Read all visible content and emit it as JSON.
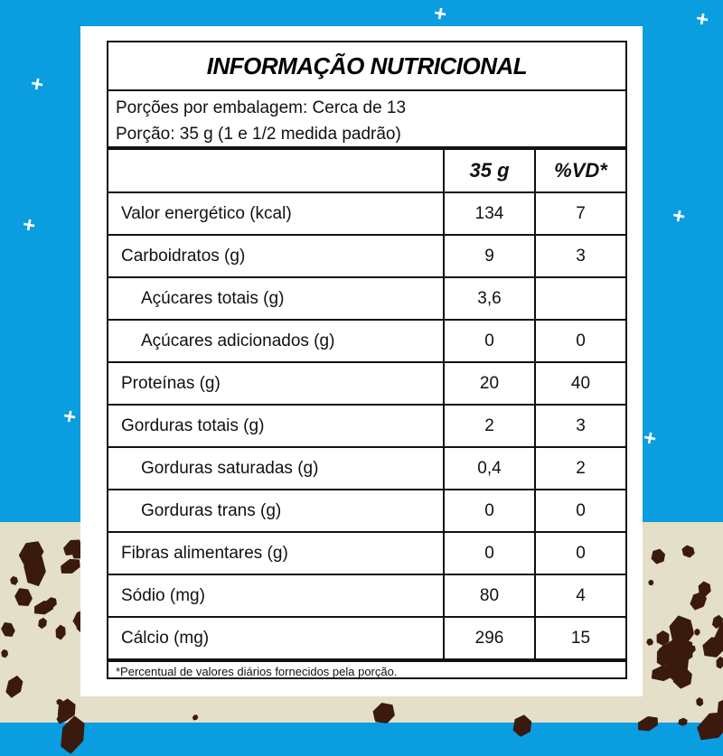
{
  "label": {
    "title": "INFORMAÇÃO NUTRICIONAL",
    "servings_per_package": "Porções por embalagem: Cerca de 13",
    "serving_size": "Porção: 35 g (1 e 1/2 medida padrão)",
    "columns": [
      "",
      "35 g",
      "%VD*"
    ],
    "rows": [
      {
        "name": "Valor energético (kcal)",
        "amount": "134",
        "dv": "7",
        "indent": false
      },
      {
        "name": "Carboidratos (g)",
        "amount": "9",
        "dv": "3",
        "indent": false
      },
      {
        "name": "Açúcares totais (g)",
        "amount": "3,6",
        "dv": "",
        "indent": true
      },
      {
        "name": "Açúcares adicionados (g)",
        "amount": "0",
        "dv": "0",
        "indent": true
      },
      {
        "name": "Proteínas (g)",
        "amount": "20",
        "dv": "40",
        "indent": false
      },
      {
        "name": "Gorduras totais (g)",
        "amount": "2",
        "dv": "3",
        "indent": false
      },
      {
        "name": "Gorduras saturadas (g)",
        "amount": "0,4",
        "dv": "2",
        "indent": true
      },
      {
        "name": "Gorduras trans (g)",
        "amount": "0",
        "dv": "0",
        "indent": true
      },
      {
        "name": "Fibras alimentares (g)",
        "amount": "0",
        "dv": "0",
        "indent": false
      },
      {
        "name": "Sódio (mg)",
        "amount": "80",
        "dv": "4",
        "indent": false
      },
      {
        "name": "Cálcio (mg)",
        "amount": "296",
        "dv": "15",
        "indent": false
      }
    ],
    "footnote": "*Percentual de valores diários fornecidos pela porção."
  },
  "colors": {
    "background_blue": "#0a9de0",
    "background_beige": "#e4dfc8",
    "spots": "#3a1a0e"
  }
}
